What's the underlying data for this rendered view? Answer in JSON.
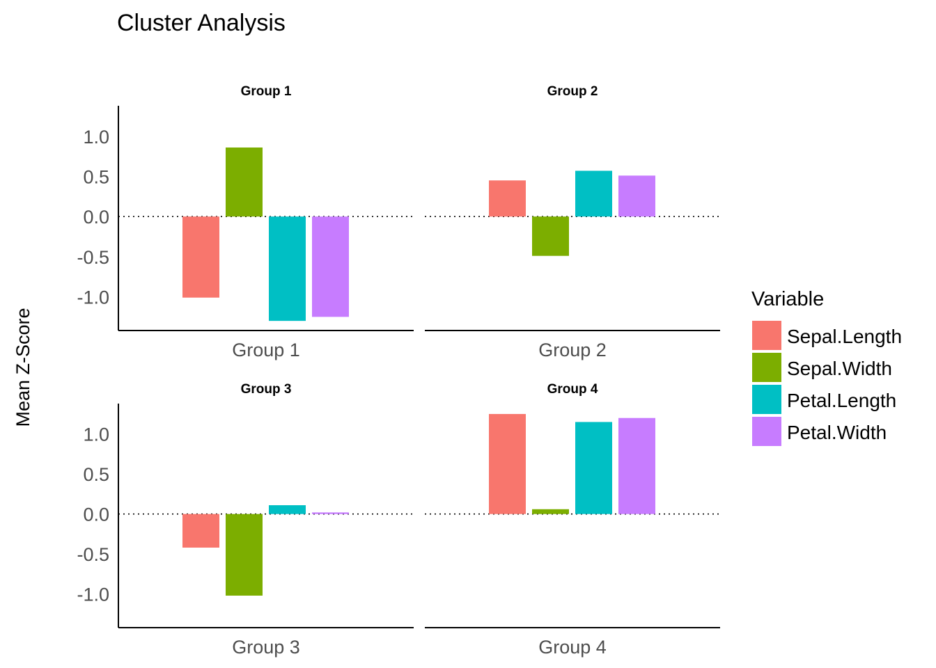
{
  "chart_data": {
    "type": "bar",
    "title": "Cluster Analysis",
    "xlabel": "",
    "ylabel": "Mean Z-Score",
    "ylim": [
      -1.42,
      1.38
    ],
    "yticks": [
      1.0,
      0.5,
      0.0,
      -0.5,
      -1.0
    ],
    "ytick_labels": [
      "1.0",
      "0.5",
      "0.0",
      "-0.5",
      "-1.0"
    ],
    "reference_line": 0,
    "grid": false,
    "legend": {
      "title": "Variable",
      "position": "right",
      "entries": [
        "Sepal.Length",
        "Sepal.Width",
        "Petal.Length",
        "Petal.Width"
      ]
    },
    "colors": [
      "#F8766D",
      "#7CAE00",
      "#00BFC4",
      "#C77CFF"
    ],
    "facets": [
      {
        "strip": "Group 1",
        "category": "Group 1",
        "values": [
          -1.01,
          0.86,
          -1.3,
          -1.25
        ]
      },
      {
        "strip": "Group 2",
        "category": "Group 2",
        "values": [
          0.45,
          -0.49,
          0.57,
          0.51
        ]
      },
      {
        "strip": "Group 3",
        "category": "Group 3",
        "values": [
          -0.42,
          -1.02,
          0.11,
          0.02
        ]
      },
      {
        "strip": "Group 4",
        "category": "Group 4",
        "values": [
          1.25,
          0.06,
          1.15,
          1.2
        ]
      }
    ]
  }
}
